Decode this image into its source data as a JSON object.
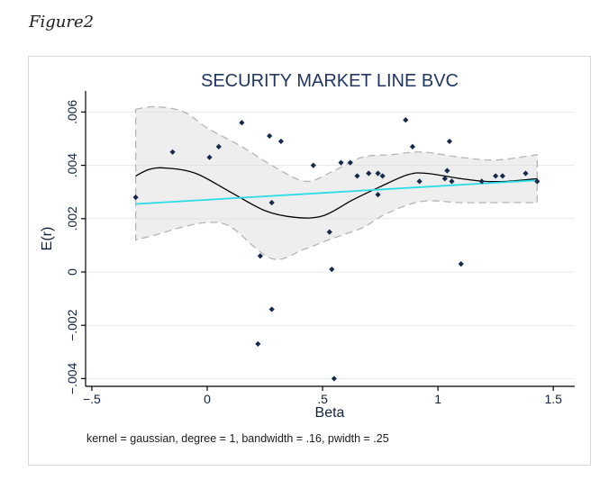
{
  "figure_label": "Figure2",
  "footnote": "kernel = gaussian, degree = 1, bandwidth = .16, pwidth = .25",
  "colors": {
    "title": "#21365f",
    "marker": "#152a4a",
    "smooth_line": "#000000",
    "linear_fit": "#29dce6",
    "band_fill": "rgba(222,222,222,0.5)",
    "band_stroke": "#b5b5b5",
    "gridline": "#e2e9ef",
    "axis": "#000000"
  },
  "chart_data": {
    "type": "scatter",
    "title": "SECURITY MARKET LINE BVC",
    "xlabel": "Beta",
    "ylabel": "E(r)",
    "grid": true,
    "legend": "none",
    "xlim": [
      -0.527,
      1.593
    ],
    "ylim": [
      -0.00429,
      0.00679
    ],
    "x_ticks": [
      -0.5,
      0,
      0.5,
      1,
      1.5
    ],
    "x_tick_labels": [
      "−.5",
      "0",
      ".5",
      "1",
      "1.5"
    ],
    "y_ticks": [
      0.006,
      0.004,
      0.002,
      0,
      -0.002,
      -0.004
    ],
    "y_tick_labels": [
      ".006",
      ".004",
      ".002",
      "0",
      "−.002",
      "−.004"
    ],
    "series": [
      {
        "name": "observations",
        "type": "scatter",
        "marker": "diamond",
        "points": [
          [
            -0.31,
            0.0028
          ],
          [
            -0.15,
            0.0045
          ],
          [
            0.01,
            0.0043
          ],
          [
            0.05,
            0.0047
          ],
          [
            0.15,
            0.0056
          ],
          [
            0.22,
            -0.0027
          ],
          [
            0.23,
            0.0006
          ],
          [
            0.27,
            0.0051
          ],
          [
            0.28,
            0.0026
          ],
          [
            0.28,
            -0.0014
          ],
          [
            0.32,
            0.0049
          ],
          [
            0.46,
            0.004
          ],
          [
            0.53,
            0.0015
          ],
          [
            0.54,
            0.0001
          ],
          [
            0.55,
            -0.004
          ],
          [
            0.58,
            0.0041
          ],
          [
            0.62,
            0.0041
          ],
          [
            0.65,
            0.0036
          ],
          [
            0.7,
            0.0037
          ],
          [
            0.74,
            0.0037
          ],
          [
            0.74,
            0.0029
          ],
          [
            0.76,
            0.0036
          ],
          [
            0.86,
            0.0057
          ],
          [
            0.89,
            0.0047
          ],
          [
            0.92,
            0.0034
          ],
          [
            1.03,
            0.0035
          ],
          [
            1.04,
            0.0038
          ],
          [
            1.05,
            0.0049
          ],
          [
            1.06,
            0.0034
          ],
          [
            1.1,
            0.0003
          ],
          [
            1.19,
            0.0034
          ],
          [
            1.25,
            0.0036
          ],
          [
            1.28,
            0.0036
          ],
          [
            1.38,
            0.0037
          ],
          [
            1.43,
            0.0034
          ]
        ]
      },
      {
        "name": "lpoly_smooth",
        "type": "line",
        "points": [
          [
            -0.31,
            0.0036
          ],
          [
            -0.25,
            0.00385
          ],
          [
            -0.18,
            0.0039
          ],
          [
            -0.05,
            0.0037
          ],
          [
            0.1,
            0.003
          ],
          [
            0.25,
            0.0023
          ],
          [
            0.38,
            0.00205
          ],
          [
            0.5,
            0.0021
          ],
          [
            0.63,
            0.0027
          ],
          [
            0.75,
            0.0032
          ],
          [
            0.87,
            0.00365
          ],
          [
            0.95,
            0.0037
          ],
          [
            1.1,
            0.0035
          ],
          [
            1.2,
            0.0034
          ],
          [
            1.3,
            0.0034
          ],
          [
            1.43,
            0.0035
          ]
        ]
      },
      {
        "name": "linear_fit",
        "type": "line",
        "points": [
          [
            -0.31,
            0.00255
          ],
          [
            1.43,
            0.00344
          ]
        ]
      },
      {
        "name": "confidence_band",
        "type": "band",
        "top": [
          [
            -0.31,
            0.0061
          ],
          [
            -0.22,
            0.0062
          ],
          [
            -0.1,
            0.006
          ],
          [
            0.0,
            0.0054
          ],
          [
            0.15,
            0.0047
          ],
          [
            0.3,
            0.0039
          ],
          [
            0.43,
            0.0034
          ],
          [
            0.55,
            0.0038
          ],
          [
            0.67,
            0.0043
          ],
          [
            0.8,
            0.0044
          ],
          [
            0.93,
            0.0045
          ],
          [
            1.1,
            0.0043
          ],
          [
            1.25,
            0.0042
          ],
          [
            1.43,
            0.0044
          ]
        ],
        "bottom": [
          [
            -0.31,
            0.0012
          ],
          [
            -0.22,
            0.0014
          ],
          [
            -0.1,
            0.0017
          ],
          [
            0.0,
            0.00185
          ],
          [
            0.1,
            0.0017
          ],
          [
            0.28,
            0.0005
          ],
          [
            0.42,
            0.00085
          ],
          [
            0.54,
            0.00125
          ],
          [
            0.67,
            0.00165
          ],
          [
            0.78,
            0.0022
          ],
          [
            0.93,
            0.00265
          ],
          [
            1.1,
            0.0026
          ],
          [
            1.25,
            0.0026
          ],
          [
            1.43,
            0.0026
          ]
        ]
      }
    ]
  }
}
